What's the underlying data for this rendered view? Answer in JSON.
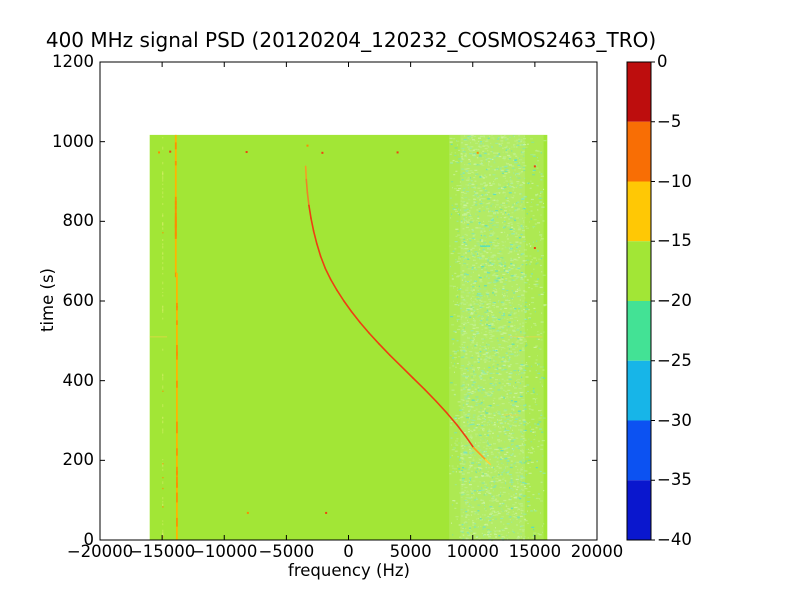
{
  "chart_data": {
    "type": "heatmap",
    "title": "400 MHz signal PSD (20120204_120232_COSMOS2463_TRO)",
    "xlabel": "frequency (Hz)",
    "ylabel": "time (s)",
    "xlim": [
      -20000,
      20000
    ],
    "ylim": [
      0,
      1200
    ],
    "grid": false,
    "x_ticks": [
      -20000,
      -15000,
      -10000,
      -5000,
      0,
      5000,
      10000,
      15000,
      20000
    ],
    "x_tick_labels": [
      "−20000",
      "−15000",
      "−10000",
      "−5000",
      "0",
      "5000",
      "10000",
      "15000",
      "20000"
    ],
    "y_ticks": [
      0,
      200,
      400,
      600,
      800,
      1000,
      1200
    ],
    "y_tick_labels": [
      "0",
      "200",
      "400",
      "600",
      "800",
      "1000",
      "1200"
    ],
    "data_extent": {
      "freq": [
        -16000,
        16000
      ],
      "time": [
        0,
        1017
      ]
    },
    "background_level": {
      "approx_db": -17,
      "color": "#a2e636"
    },
    "colorbar": {
      "vmax": 0,
      "vmin": -40,
      "tick_labels": [
        "0",
        "−5",
        "−10",
        "−15",
        "−20",
        "−25",
        "−30",
        "−35",
        "−40"
      ],
      "ticks": [
        0,
        -5,
        -10,
        -15,
        -20,
        -25,
        -30,
        -35,
        -40
      ],
      "bands": [
        {
          "range": [
            -5,
            0
          ],
          "color": "#bd0d0d"
        },
        {
          "range": [
            -10,
            -5
          ],
          "color": "#f86e05"
        },
        {
          "range": [
            -15,
            -10
          ],
          "color": "#ffc805"
        },
        {
          "range": [
            -20,
            -15
          ],
          "color": "#a2e636"
        },
        {
          "range": [
            -25,
            -20
          ],
          "color": "#43e295"
        },
        {
          "range": [
            -30,
            -25
          ],
          "color": "#17b5e8"
        },
        {
          "range": [
            -35,
            -30
          ],
          "color": "#0c52f2"
        },
        {
          "range": [
            -40,
            -35
          ],
          "color": "#0a17ce"
        }
      ]
    },
    "features": {
      "carrier_line": {
        "approx_db": -11,
        "color": "#ffb400",
        "highlight_color": "#fb8c00",
        "segments": [
          {
            "freq": -13900,
            "time": [
              670,
              1017
            ]
          },
          {
            "freq": -13810,
            "time": [
              0,
              670
            ]
          }
        ]
      },
      "companion_line": {
        "freq": -14950,
        "time": [
          0,
          1017
        ],
        "color": "#d8ee6e"
      },
      "doppler_track": {
        "approx_db": -6,
        "points": [
          [
            -3450,
            938
          ],
          [
            -3395,
            905
          ],
          [
            -3310,
            872
          ],
          [
            -3185,
            840
          ],
          [
            -3020,
            808
          ],
          [
            -2810,
            776
          ],
          [
            -2550,
            744
          ],
          [
            -2240,
            712
          ],
          [
            -1870,
            682
          ],
          [
            -1430,
            654
          ],
          [
            -930,
            627
          ],
          [
            -370,
            600
          ],
          [
            250,
            573
          ],
          [
            930,
            546
          ],
          [
            1670,
            519
          ],
          [
            2470,
            492
          ],
          [
            3330,
            464
          ],
          [
            4240,
            436
          ],
          [
            5180,
            407
          ],
          [
            6130,
            378
          ],
          [
            7060,
            348
          ],
          [
            7940,
            318
          ],
          [
            8750,
            288
          ],
          [
            9460,
            259
          ],
          [
            10060,
            232
          ],
          [
            10570,
            216
          ],
          [
            11020,
            202
          ],
          [
            11400,
            190
          ]
        ],
        "segment_colors": [
          {
            "t_min": 905,
            "color": "#f59e24"
          },
          {
            "t_min": 840,
            "color": "#f08028"
          },
          {
            "t_min": 240,
            "color": "#ee3d12"
          },
          {
            "t_min": 205,
            "color": "#fb9b1e"
          },
          {
            "t_min": 0,
            "color": "#ffd233"
          }
        ]
      },
      "noise_band": {
        "freq_range": [
          8100,
          15700
        ],
        "core_range": [
          9000,
          14200
        ],
        "time_range": [
          0,
          1017
        ],
        "approx_db_range": [
          -22,
          -16
        ],
        "speckle_colors": [
          "#bdf08d",
          "#cdf4a4",
          "#93eaae",
          "#74e4c0",
          "#4fdccd"
        ]
      },
      "specks": [
        [
          -15250,
          973
        ],
        [
          -14350,
          975
        ],
        [
          -8200,
          974
        ],
        [
          -3300,
          990
        ],
        [
          -2100,
          972
        ],
        [
          3950,
          973
        ],
        [
          10400,
          972
        ],
        [
          15000,
          938
        ],
        [
          15000,
          733
        ],
        [
          -8100,
          68
        ],
        [
          -1800,
          68
        ]
      ],
      "cyan_dashes": [
        [
          11000,
          738
        ]
      ],
      "faint_lines": [
        {
          "time": 510,
          "freq_range": [
            -16000,
            -14600
          ]
        },
        {
          "time": 510,
          "freq_range": [
            12900,
            15600
          ]
        },
        {
          "time": 314,
          "freq_range": [
            12500,
            13700
          ]
        }
      ]
    }
  }
}
